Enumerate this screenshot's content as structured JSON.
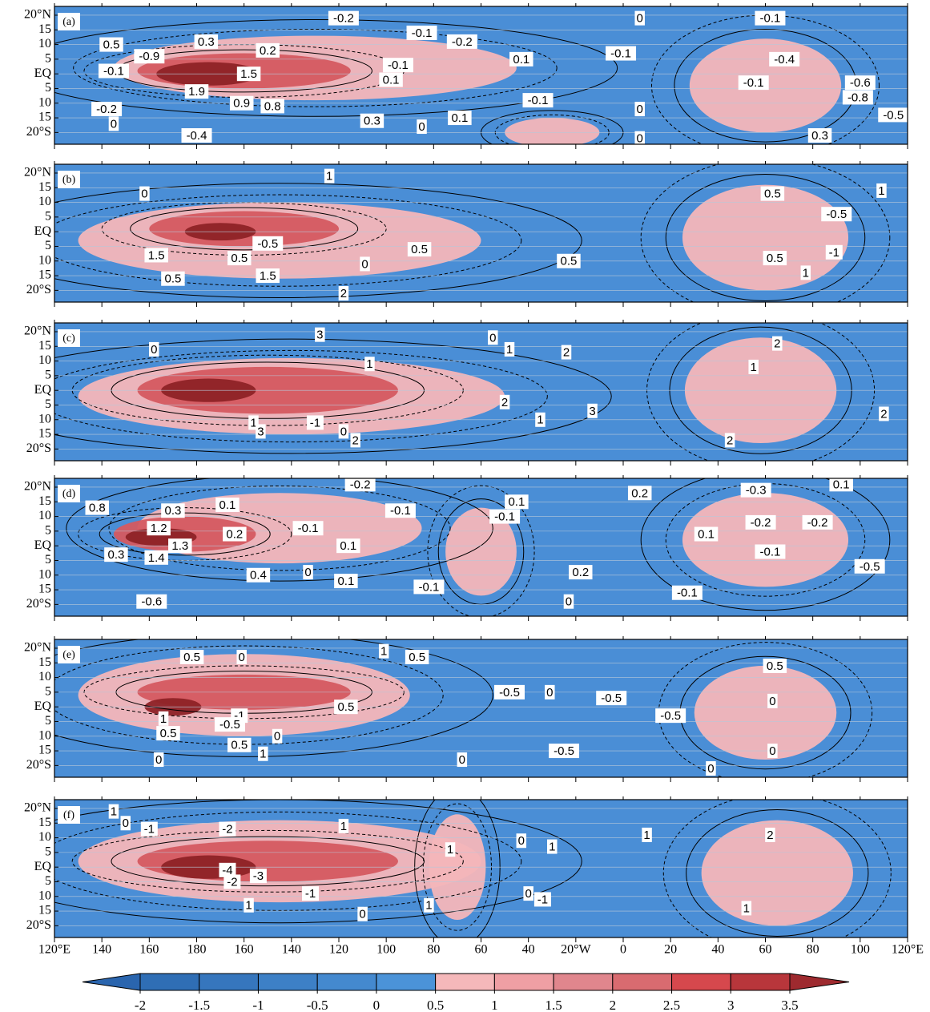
{
  "axes": {
    "xlim": [
      120,
      480
    ],
    "xticks": [
      {
        "value": 120,
        "label": "120°E"
      },
      140,
      160,
      180,
      {
        "value": 200,
        "label": "160"
      },
      {
        "value": 220,
        "label": "140"
      },
      {
        "value": 240,
        "label": "120"
      },
      {
        "value": 260,
        "label": "100"
      },
      {
        "value": 280,
        "label": "80"
      },
      {
        "value": 300,
        "label": "60"
      },
      {
        "value": 320,
        "label": "40"
      },
      {
        "value": 340,
        "label": "20°W"
      },
      {
        "value": 360,
        "label": "0"
      },
      {
        "value": 380,
        "label": "20"
      },
      {
        "value": 400,
        "label": "40"
      },
      {
        "value": 420,
        "label": "60"
      },
      {
        "value": 440,
        "label": "80"
      },
      {
        "value": 460,
        "label": "100"
      },
      {
        "value": 480,
        "label": "120°E"
      }
    ],
    "ylim": [
      -24,
      23
    ],
    "yticks": [
      {
        "value": 20,
        "label": "20°N"
      },
      15,
      10,
      5,
      {
        "value": 0,
        "label": "EQ"
      },
      {
        "value": -5,
        "label": "5"
      },
      {
        "value": -10,
        "label": "10"
      },
      {
        "value": -15,
        "label": "15"
      },
      {
        "value": -20,
        "label": "20°S"
      }
    ]
  },
  "panels": [
    {
      "label": "(a)",
      "contour_labels": [
        {
          "label": "-0.1",
          "lon": 145,
          "lat": 1
        },
        {
          "label": "0.5",
          "lon": 144,
          "lat": 10
        },
        {
          "label": "-0.9",
          "lon": 160,
          "lat": 6
        },
        {
          "label": "0.3",
          "lon": 184,
          "lat": 11
        },
        {
          "label": "0.2",
          "lon": 210,
          "lat": 8
        },
        {
          "label": "1.5",
          "lon": 202,
          "lat": 0
        },
        {
          "label": "1.9",
          "lon": 180,
          "lat": -6
        },
        {
          "label": "0.9",
          "lon": 199,
          "lat": -10
        },
        {
          "label": "0.8",
          "lon": 212,
          "lat": -11
        },
        {
          "label": "-0.2",
          "lon": 142,
          "lat": -12
        },
        {
          "label": "0",
          "lon": 145,
          "lat": -17
        },
        {
          "label": "-0.4",
          "lon": 180,
          "lat": -21
        },
        {
          "label": "-0.2",
          "lon": 242,
          "lat": 19
        },
        {
          "label": "-0.1",
          "lon": 275,
          "lat": 14
        },
        {
          "label": "-0.2",
          "lon": 292,
          "lat": 11
        },
        {
          "label": "-0.1",
          "lon": 265,
          "lat": 3
        },
        {
          "label": "0.1",
          "lon": 262,
          "lat": -2
        },
        {
          "label": "0.1",
          "lon": 317,
          "lat": 5
        },
        {
          "label": "-0.1",
          "lon": 359,
          "lat": 7
        },
        {
          "label": "0",
          "lon": 367,
          "lat": 19
        },
        {
          "label": "-0.1",
          "lon": 422,
          "lat": 19
        },
        {
          "label": "-0.4",
          "lon": 428,
          "lat": 5
        },
        {
          "label": "-0.1",
          "lon": 415,
          "lat": -3
        },
        {
          "label": "0.3",
          "lon": 254,
          "lat": -16
        },
        {
          "label": "0",
          "lon": 275,
          "lat": -18
        },
        {
          "label": "0.1",
          "lon": 291,
          "lat": -15
        },
        {
          "label": "-0.1",
          "lon": 324,
          "lat": -9
        },
        {
          "label": "0",
          "lon": 367,
          "lat": -12
        },
        {
          "label": "0",
          "lon": 367,
          "lat": -22
        },
        {
          "label": "0.3",
          "lon": 443,
          "lat": -21
        },
        {
          "label": "-0.5",
          "lon": 474,
          "lat": -14
        },
        {
          "label": "-0.6",
          "lon": 460,
          "lat": -3
        },
        {
          "label": "-0.8",
          "lon": 459,
          "lat": -8
        }
      ]
    },
    {
      "label": "(b)",
      "contour_labels": [
        {
          "label": "1",
          "lon": 236,
          "lat": 19
        },
        {
          "label": "0",
          "lon": 158,
          "lat": 13
        },
        {
          "label": "0.5",
          "lon": 423,
          "lat": 13
        },
        {
          "label": "-0.5",
          "lon": 450,
          "lat": 6
        },
        {
          "label": "1",
          "lon": 469,
          "lat": 14
        },
        {
          "label": "-0.5",
          "lon": 210,
          "lat": -4
        },
        {
          "label": "1.5",
          "lon": 163,
          "lat": -8
        },
        {
          "label": "0.5",
          "lon": 198,
          "lat": -9
        },
        {
          "label": "0",
          "lon": 251,
          "lat": -11
        },
        {
          "label": "0.5",
          "lon": 274,
          "lat": -6
        },
        {
          "label": "0.5",
          "lon": 337,
          "lat": -10
        },
        {
          "label": "0.5",
          "lon": 424,
          "lat": -9
        },
        {
          "label": "-1",
          "lon": 449,
          "lat": -7
        },
        {
          "label": "1",
          "lon": 437,
          "lat": -14
        },
        {
          "label": "1.5",
          "lon": 210,
          "lat": -15
        },
        {
          "label": "0.5",
          "lon": 170,
          "lat": -16
        },
        {
          "label": "2",
          "lon": 242,
          "lat": -21
        }
      ]
    },
    {
      "label": "(c)",
      "contour_labels": [
        {
          "label": "3",
          "lon": 232,
          "lat": 19
        },
        {
          "label": "0",
          "lon": 162,
          "lat": 14
        },
        {
          "label": "1",
          "lon": 253,
          "lat": 9
        },
        {
          "label": "0",
          "lon": 305,
          "lat": 18
        },
        {
          "label": "1",
          "lon": 312,
          "lat": 14
        },
        {
          "label": "2",
          "lon": 336,
          "lat": 13
        },
        {
          "label": "2",
          "lon": 425,
          "lat": 16
        },
        {
          "label": "1",
          "lon": 415,
          "lat": 8
        },
        {
          "label": "-1",
          "lon": 230,
          "lat": -11
        },
        {
          "label": "0",
          "lon": 242,
          "lat": -14
        },
        {
          "label": "2",
          "lon": 247,
          "lat": -17
        },
        {
          "label": "1",
          "lon": 204,
          "lat": -11
        },
        {
          "label": "3",
          "lon": 207,
          "lat": -14
        },
        {
          "label": "2",
          "lon": 310,
          "lat": -4
        },
        {
          "label": "1",
          "lon": 325,
          "lat": -10
        },
        {
          "label": "3",
          "lon": 347,
          "lat": -7
        },
        {
          "label": "2",
          "lon": 470,
          "lat": -8
        },
        {
          "label": "2",
          "lon": 405,
          "lat": -17
        }
      ]
    },
    {
      "label": "(d)",
      "contour_labels": [
        {
          "label": "0.8",
          "lon": 138,
          "lat": 13
        },
        {
          "label": "0.3",
          "lon": 170,
          "lat": 12
        },
        {
          "label": "0.1",
          "lon": 193,
          "lat": 14
        },
        {
          "label": "1.2",
          "lon": 164,
          "lat": 6
        },
        {
          "label": "1.3",
          "lon": 173,
          "lat": 0
        },
        {
          "label": "0.2",
          "lon": 196,
          "lat": 4
        },
        {
          "label": "1.4",
          "lon": 163,
          "lat": -4
        },
        {
          "label": "0.3",
          "lon": 146,
          "lat": -3
        },
        {
          "label": "-0.6",
          "lon": 161,
          "lat": -19
        },
        {
          "label": "0.4",
          "lon": 206,
          "lat": -10
        },
        {
          "label": "0",
          "lon": 227,
          "lat": -9
        },
        {
          "label": "0.1",
          "lon": 243,
          "lat": -12
        },
        {
          "label": "-0.2",
          "lon": 249,
          "lat": 21
        },
        {
          "label": "-0.1",
          "lon": 227,
          "lat": 6
        },
        {
          "label": "-0.1",
          "lon": 266,
          "lat": 12
        },
        {
          "label": "0.1",
          "lon": 244,
          "lat": 0
        },
        {
          "label": "0.1",
          "lon": 315,
          "lat": 15
        },
        {
          "label": "-0.1",
          "lon": 310,
          "lat": 10
        },
        {
          "label": "-0.1",
          "lon": 278,
          "lat": -14
        },
        {
          "label": "0.2",
          "lon": 342,
          "lat": -9
        },
        {
          "label": "0",
          "lon": 337,
          "lat": -19
        },
        {
          "label": "-0.1",
          "lon": 387,
          "lat": -16
        },
        {
          "label": "0.2",
          "lon": 367,
          "lat": 18
        },
        {
          "label": "-0.3",
          "lon": 416,
          "lat": 19
        },
        {
          "label": "0.1",
          "lon": 452,
          "lat": 21
        },
        {
          "label": "0.1",
          "lon": 395,
          "lat": 4
        },
        {
          "label": "-0.2",
          "lon": 418,
          "lat": 8
        },
        {
          "label": "-0.2",
          "lon": 442,
          "lat": 8
        },
        {
          "label": "-0.1",
          "lon": 422,
          "lat": -2
        },
        {
          "label": "-0.5",
          "lon": 464,
          "lat": -7
        }
      ]
    },
    {
      "label": "(e)",
      "contour_labels": [
        {
          "label": "0.5",
          "lon": 178,
          "lat": 17
        },
        {
          "label": "0",
          "lon": 199,
          "lat": 17
        },
        {
          "label": "1",
          "lon": 259,
          "lat": 19
        },
        {
          "label": "0.5",
          "lon": 273,
          "lat": 17
        },
        {
          "label": "0.5",
          "lon": 424,
          "lat": 14
        },
        {
          "label": "-0.5",
          "lon": 312,
          "lat": 5
        },
        {
          "label": "0",
          "lon": 329,
          "lat": 5
        },
        {
          "label": "-0.5",
          "lon": 355,
          "lat": 3
        },
        {
          "label": "0.5",
          "lon": 243,
          "lat": 0
        },
        {
          "label": "0",
          "lon": 423,
          "lat": 2
        },
        {
          "label": "-0.5",
          "lon": 380,
          "lat": -3
        },
        {
          "label": "-1",
          "lon": 198,
          "lat": -3
        },
        {
          "label": "-0.5",
          "lon": 194,
          "lat": -6
        },
        {
          "label": "1",
          "lon": 166,
          "lat": -4
        },
        {
          "label": "0.5",
          "lon": 168,
          "lat": -9
        },
        {
          "label": "0",
          "lon": 214,
          "lat": -10
        },
        {
          "label": "0.5",
          "lon": 198,
          "lat": -13
        },
        {
          "label": "1",
          "lon": 208,
          "lat": -16
        },
        {
          "label": "0",
          "lon": 164,
          "lat": -18
        },
        {
          "label": "0",
          "lon": 292,
          "lat": -18
        },
        {
          "label": "-0.5",
          "lon": 335,
          "lat": -15
        },
        {
          "label": "0",
          "lon": 423,
          "lat": -15
        },
        {
          "label": "0",
          "lon": 397,
          "lat": -21
        }
      ]
    },
    {
      "label": "(f)",
      "contour_labels": [
        {
          "label": "1",
          "lon": 145,
          "lat": 19
        },
        {
          "label": "0",
          "lon": 150,
          "lat": 15
        },
        {
          "label": "-1",
          "lon": 160,
          "lat": 13
        },
        {
          "label": "-2",
          "lon": 193,
          "lat": 13
        },
        {
          "label": "1",
          "lon": 242,
          "lat": 14
        },
        {
          "label": "1",
          "lon": 370,
          "lat": 11
        },
        {
          "label": "2",
          "lon": 422,
          "lat": 11
        },
        {
          "label": "1",
          "lon": 287,
          "lat": 6
        },
        {
          "label": "0",
          "lon": 317,
          "lat": 9
        },
        {
          "label": "1",
          "lon": 330,
          "lat": 7
        },
        {
          "label": "-4",
          "lon": 193,
          "lat": -1
        },
        {
          "label": "-3",
          "lon": 206,
          "lat": -3
        },
        {
          "label": "-2",
          "lon": 195,
          "lat": -5
        },
        {
          "label": "-1",
          "lon": 228,
          "lat": -9
        },
        {
          "label": "0",
          "lon": 320,
          "lat": -9
        },
        {
          "label": "-1",
          "lon": 326,
          "lat": -11
        },
        {
          "label": "1",
          "lon": 202,
          "lat": -13
        },
        {
          "label": "1",
          "lon": 278,
          "lat": -13
        },
        {
          "label": "0",
          "lon": 250,
          "lat": -16
        },
        {
          "label": "1",
          "lon": 412,
          "lat": -14
        }
      ]
    }
  ],
  "colorbar": {
    "ticks": [
      -2,
      -1.5,
      -1,
      -0.5,
      0,
      0.5,
      1,
      1.5,
      2,
      2.5,
      3,
      3.5
    ],
    "colors": [
      "#2a65ae",
      "#2f6eb5",
      "#3676bd",
      "#3d80c6",
      "#4489cf",
      "#4b93d8",
      "#f5b8ba",
      "#ef9fa4",
      "#e0868d",
      "#d96b70",
      "#d6484d",
      "#b8363b",
      "#9e2a2f"
    ]
  }
}
